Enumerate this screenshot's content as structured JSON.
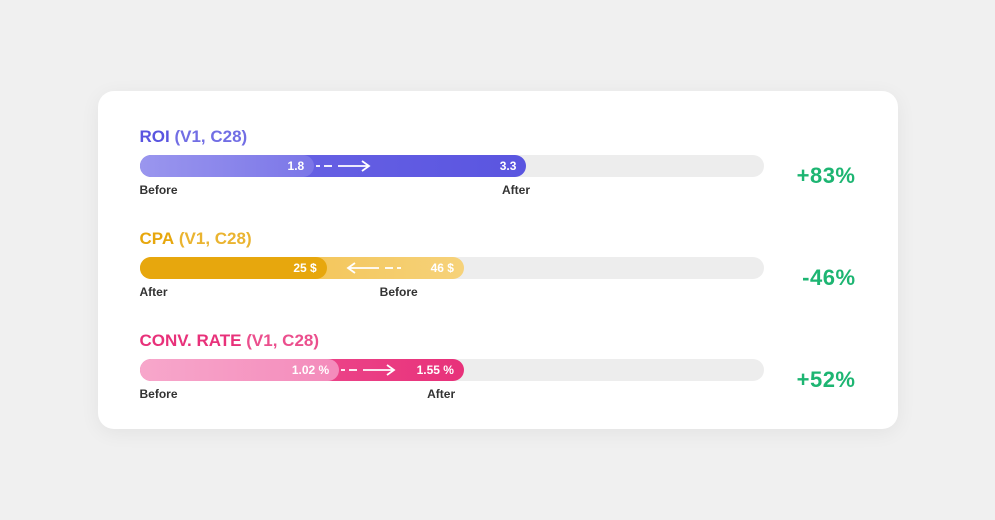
{
  "card": {
    "background": "#ffffff",
    "track_bg": "#ededed",
    "delta_color": "#1db572",
    "axis_before": "Before",
    "axis_after": "After",
    "metrics": [
      {
        "id": "roi",
        "name": "ROI",
        "subscript": "(V1, C28)",
        "name_color": "#5a55e0",
        "delta": "+83%",
        "direction": "right",
        "seg_a": {
          "width_pct": 28,
          "color_left": "#9a96ee",
          "color_right": "#7b76e8",
          "value": "1.8",
          "value_align": "right"
        },
        "seg_b": {
          "width_pct": 62,
          "color_left": "#6e68e6",
          "color_right": "#5a55e0",
          "value": "3.3",
          "value_align": "right"
        },
        "arrow_left_pct": 28,
        "axis_a_left_pct": 0,
        "axis_b_left_pct": 60
      },
      {
        "id": "cpa",
        "name": "CPA",
        "subscript": "(V1, C28)",
        "name_color": "#e7a70d",
        "delta": "-46%",
        "direction": "left",
        "seg_a": {
          "width_pct": 30,
          "color_left": "#e7a70d",
          "color_right": "#e7a70d",
          "value": "25 $",
          "value_align": "right"
        },
        "seg_b": {
          "width_pct": 52,
          "color_left": "#f0b93a",
          "color_right": "#f6d27a",
          "value": "46 $",
          "value_align": "right",
          "value_opacity": 0.95
        },
        "arrow_left_pct": 32,
        "axis_a_left_pct": 0,
        "axis_b_left_pct": 40,
        "axis_a_label": "After",
        "axis_b_label": "Before"
      },
      {
        "id": "convrate",
        "name": "CONV. RATE",
        "subscript": "(V1, C28)",
        "name_color": "#e8317a",
        "delta": "+52%",
        "direction": "right",
        "seg_a": {
          "width_pct": 32,
          "color_left": "#f7a7cb",
          "color_right": "#f48bbb",
          "value": "1.02 %",
          "value_align": "right"
        },
        "seg_b": {
          "width_pct": 52,
          "color_left": "#f05c9b",
          "color_right": "#e8317a",
          "value": "1.55 %",
          "value_align": "right"
        },
        "arrow_left_pct": 32,
        "axis_a_left_pct": 0,
        "axis_b_left_pct": 48
      }
    ]
  }
}
